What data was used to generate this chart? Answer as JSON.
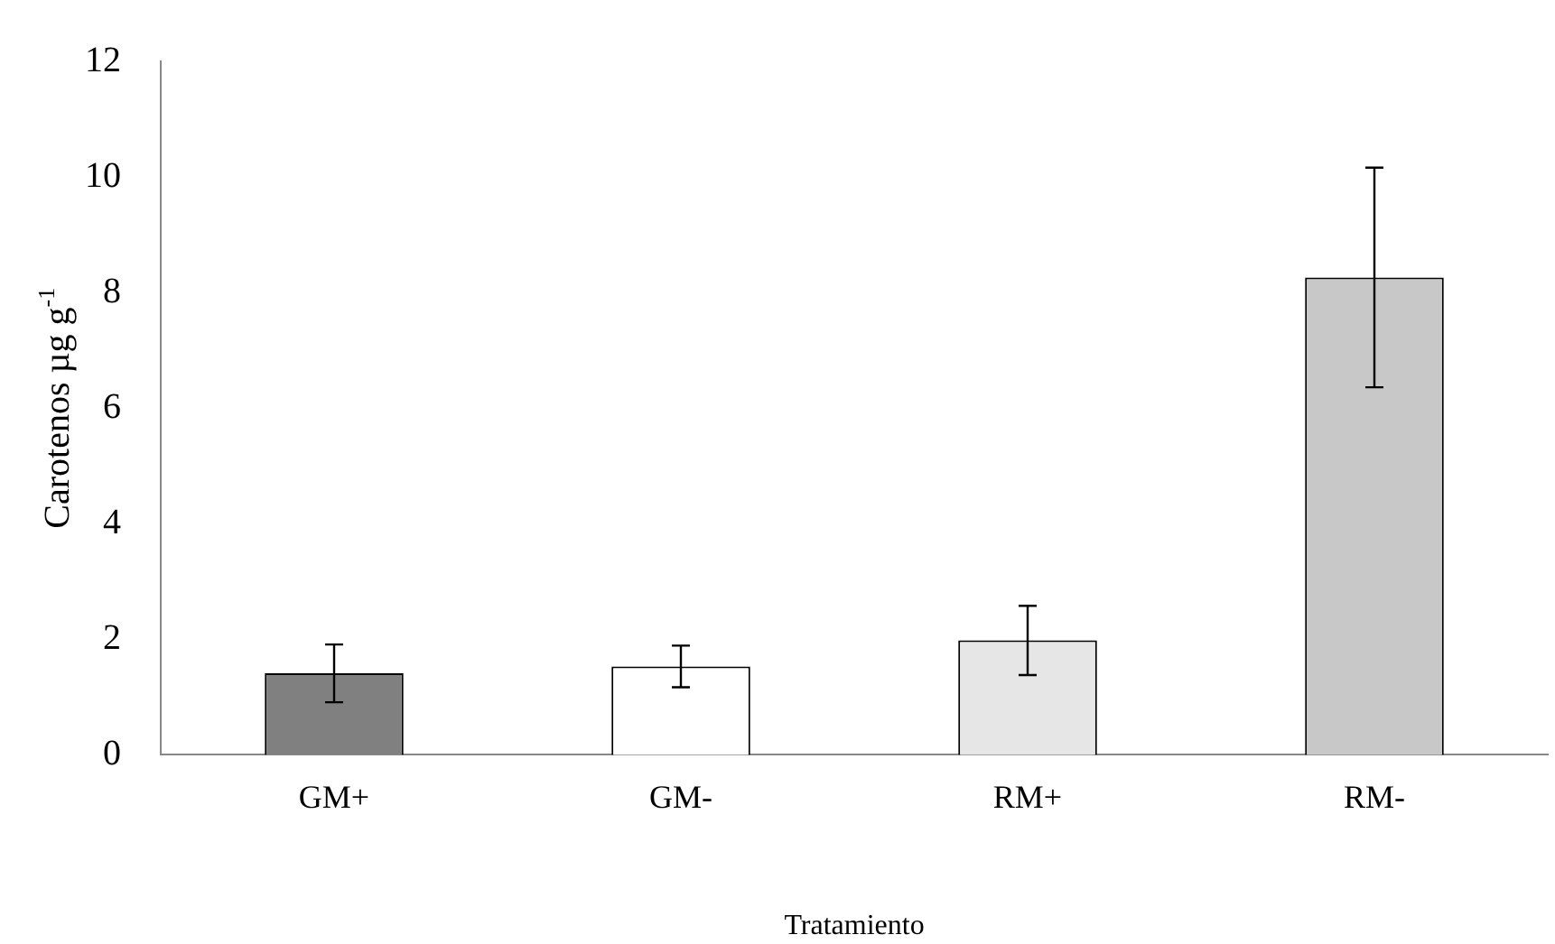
{
  "chart_data": {
    "type": "bar",
    "xlabel": "Tratamiento",
    "ylabel": "Carotenos µg g$^{-1}$",
    "categories": [
      "GM+",
      "GM-",
      "RM+",
      "RM-"
    ],
    "values": [
      1.41,
      1.53,
      1.98,
      8.26
    ],
    "errors": [
      0.5,
      0.36,
      0.6,
      1.9
    ],
    "colors": [
      "#808080",
      "#ffffff",
      "#e6e6e6",
      "#c8c8c8"
    ],
    "ylim": [
      0,
      12
    ],
    "yticks": [
      0,
      2,
      4,
      6,
      8,
      10,
      12
    ],
    "grid": false,
    "legend": false
  }
}
